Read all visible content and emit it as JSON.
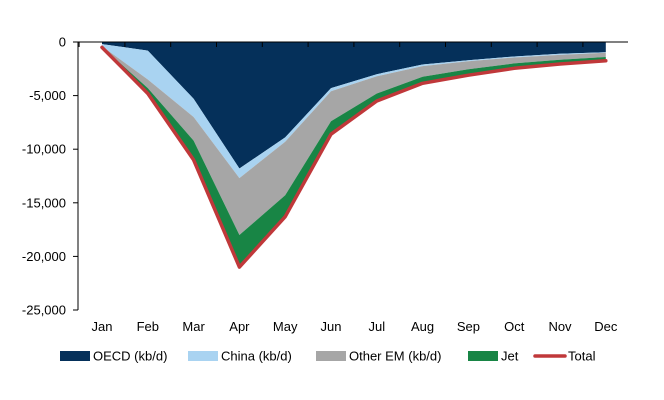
{
  "chart_data": {
    "type": "area",
    "stacked": true,
    "title": "",
    "xlabel": "",
    "ylabel": "",
    "categories": [
      "Jan",
      "Feb",
      "Mar",
      "Apr",
      "May",
      "Jun",
      "Jul",
      "Aug",
      "Sep",
      "Oct",
      "Nov",
      "Dec"
    ],
    "ylim": [
      -25000,
      0
    ],
    "yticks": [
      0,
      -5000,
      -10000,
      -15000,
      -20000,
      -25000
    ],
    "ytick_labels": [
      "0",
      "-5,000",
      "-10,000",
      "-15,000",
      "-20,000",
      "-25,000"
    ],
    "grid": false,
    "legend_position": "bottom",
    "series": [
      {
        "name": "OECD (kb/d)",
        "kind": "area",
        "color": "#05305a",
        "values": [
          -200,
          -800,
          -5300,
          -11800,
          -8900,
          -4300,
          -3000,
          -2100,
          -1700,
          -1350,
          -1100,
          -950
        ]
      },
      {
        "name": "China (kb/d)",
        "kind": "area",
        "color": "#a9d3f1",
        "values": [
          -200,
          -2700,
          -1700,
          -900,
          -400,
          -300,
          -200,
          -150,
          -100,
          -100,
          -100,
          -50
        ]
      },
      {
        "name": "Other EM (kb/d)",
        "kind": "area",
        "color": "#a6a6a6",
        "values": [
          -50,
          -800,
          -2200,
          -5300,
          -5000,
          -2800,
          -1600,
          -1000,
          -750,
          -550,
          -450,
          -400
        ]
      },
      {
        "name": "Jet",
        "kind": "area",
        "color": "#188545",
        "values": [
          -50,
          -500,
          -1800,
          -3000,
          -2000,
          -1200,
          -700,
          -600,
          -550,
          -450,
          -400,
          -350
        ]
      },
      {
        "name": "Total",
        "kind": "line",
        "color": "#c0383a",
        "values": [
          -500,
          -4800,
          -11000,
          -21000,
          -16300,
          -8600,
          -5500,
          -3850,
          -3100,
          -2450,
          -2050,
          -1750
        ]
      }
    ]
  }
}
